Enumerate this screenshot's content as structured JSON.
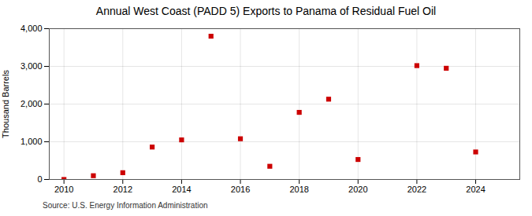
{
  "chart_data": {
    "type": "scatter",
    "title": "Annual West Coast (PADD 5) Exports to Panama of Residual Fuel Oil",
    "ylabel": "Thousand Barrels",
    "source": "Source: U.S. Energy Information Administration",
    "x": [
      2010,
      2011,
      2012,
      2013,
      2014,
      2015,
      2016,
      2017,
      2018,
      2019,
      2020,
      2022,
      2023,
      2024
    ],
    "values": [
      0,
      100,
      180,
      860,
      1050,
      3800,
      1080,
      350,
      1780,
      2130,
      530,
      3020,
      2950,
      730
    ],
    "color": "#cc0000",
    "marker": "square",
    "xlim": [
      2009.5,
      2025.5
    ],
    "xticks": [
      2010,
      2012,
      2014,
      2016,
      2018,
      2020,
      2022,
      2024
    ],
    "ylim": [
      0,
      4000
    ],
    "yticks": [
      0,
      {
        "value": 1000,
        "label": "1,000"
      },
      {
        "value": 2000,
        "label": "2,000"
      },
      {
        "value": 3000,
        "label": "3,000"
      },
      {
        "value": 4000,
        "label": "4,000"
      }
    ],
    "grid": true
  }
}
